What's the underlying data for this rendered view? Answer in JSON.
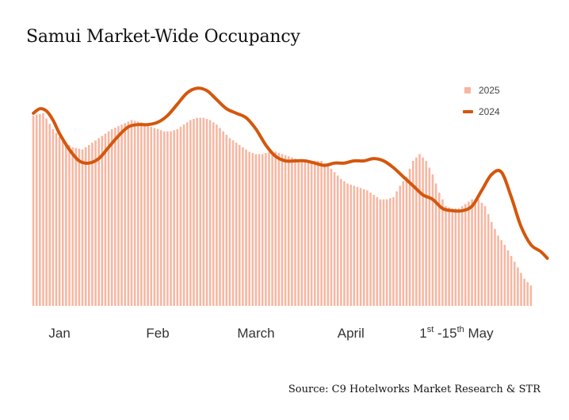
{
  "title": "Samui Market-Wide Occupancy",
  "source": "Source: C9 Hotelworks Market Research & STR",
  "colors": {
    "bars": "#f7b6a1",
    "line": "#d4570d"
  },
  "chart_data": {
    "type": "bar+line",
    "title": "Samui Market-Wide Occupancy",
    "ylim": [
      0,
      100
    ],
    "grid": false,
    "legend": {
      "placement": "top-right",
      "entries": [
        "2025",
        "2024"
      ]
    },
    "x_tick_labels": [
      {
        "label": "Jan",
        "position": 8
      },
      {
        "label": "Feb",
        "position": 38
      },
      {
        "label": "March",
        "position": 68
      },
      {
        "label": "April",
        "position": 97
      },
      {
        "label": "1st -15th May",
        "label_main": "1",
        "label_sup": "st",
        "label_rest": " -15",
        "label_sup2": "th",
        "label_end": " May",
        "position": 129
      }
    ],
    "series": [
      {
        "name": "2025",
        "type": "bar",
        "anchors": [
          [
            0,
            84
          ],
          [
            3,
            85
          ],
          [
            6,
            78
          ],
          [
            9,
            73
          ],
          [
            12,
            70
          ],
          [
            15,
            69
          ],
          [
            18,
            72
          ],
          [
            21,
            75
          ],
          [
            24,
            78
          ],
          [
            27,
            80
          ],
          [
            30,
            82
          ],
          [
            33,
            81
          ],
          [
            36,
            79
          ],
          [
            38,
            78
          ],
          [
            40,
            77
          ],
          [
            42,
            77
          ],
          [
            44,
            78
          ],
          [
            46,
            80
          ],
          [
            48,
            82
          ],
          [
            50,
            83
          ],
          [
            52,
            83
          ],
          [
            54,
            82
          ],
          [
            56,
            80
          ],
          [
            58,
            77
          ],
          [
            60,
            74
          ],
          [
            62,
            72
          ],
          [
            64,
            70
          ],
          [
            66,
            68
          ],
          [
            68,
            67
          ],
          [
            70,
            67
          ],
          [
            72,
            68
          ],
          [
            74,
            68
          ],
          [
            76,
            67
          ],
          [
            78,
            66
          ],
          [
            80,
            65
          ],
          [
            82,
            64
          ],
          [
            84,
            64
          ],
          [
            86,
            64
          ],
          [
            88,
            64
          ],
          [
            90,
            62
          ],
          [
            92,
            59
          ],
          [
            94,
            56
          ],
          [
            96,
            54
          ],
          [
            98,
            53
          ],
          [
            100,
            52
          ],
          [
            102,
            51
          ],
          [
            104,
            49
          ],
          [
            106,
            47
          ],
          [
            108,
            47
          ],
          [
            110,
            48
          ],
          [
            112,
            53
          ],
          [
            114,
            57
          ],
          [
            116,
            64
          ],
          [
            118,
            67
          ],
          [
            120,
            64
          ],
          [
            122,
            58
          ],
          [
            124,
            50
          ],
          [
            126,
            44
          ],
          [
            128,
            43
          ],
          [
            130,
            43
          ],
          [
            132,
            45
          ],
          [
            134,
            47
          ],
          [
            136,
            47
          ],
          [
            138,
            44
          ],
          [
            140,
            37
          ],
          [
            142,
            31
          ],
          [
            144,
            27
          ],
          [
            146,
            22
          ],
          [
            148,
            17
          ],
          [
            150,
            12
          ],
          [
            152,
            9
          ]
        ],
        "bar_count": 153,
        "gap_before": [
          67,
          123
        ]
      },
      {
        "name": "2024",
        "type": "line",
        "points": [
          [
            0,
            85
          ],
          [
            2,
            87
          ],
          [
            4,
            86
          ],
          [
            6,
            82
          ],
          [
            8,
            76
          ],
          [
            11,
            69
          ],
          [
            14,
            64
          ],
          [
            17,
            63
          ],
          [
            20,
            65
          ],
          [
            23,
            70
          ],
          [
            26,
            75
          ],
          [
            29,
            79
          ],
          [
            32,
            80
          ],
          [
            35,
            80
          ],
          [
            38,
            81
          ],
          [
            41,
            84
          ],
          [
            44,
            89
          ],
          [
            47,
            94
          ],
          [
            50,
            96
          ],
          [
            53,
            95
          ],
          [
            56,
            91
          ],
          [
            59,
            87
          ],
          [
            62,
            85
          ],
          [
            65,
            83
          ],
          [
            68,
            78
          ],
          [
            71,
            71
          ],
          [
            74,
            66
          ],
          [
            77,
            64
          ],
          [
            80,
            64
          ],
          [
            83,
            64
          ],
          [
            86,
            63
          ],
          [
            89,
            62
          ],
          [
            92,
            63
          ],
          [
            95,
            63
          ],
          [
            98,
            64
          ],
          [
            101,
            64
          ],
          [
            104,
            65
          ],
          [
            107,
            64
          ],
          [
            110,
            61
          ],
          [
            113,
            57
          ],
          [
            116,
            53
          ],
          [
            119,
            49
          ],
          [
            122,
            47
          ],
          [
            125,
            43
          ],
          [
            128,
            42
          ],
          [
            131,
            42
          ],
          [
            134,
            44
          ],
          [
            137,
            51
          ],
          [
            140,
            58
          ],
          [
            143,
            59
          ],
          [
            146,
            48
          ],
          [
            149,
            35
          ],
          [
            152,
            27
          ],
          [
            155,
            24
          ],
          [
            157,
            21
          ]
        ]
      }
    ]
  }
}
